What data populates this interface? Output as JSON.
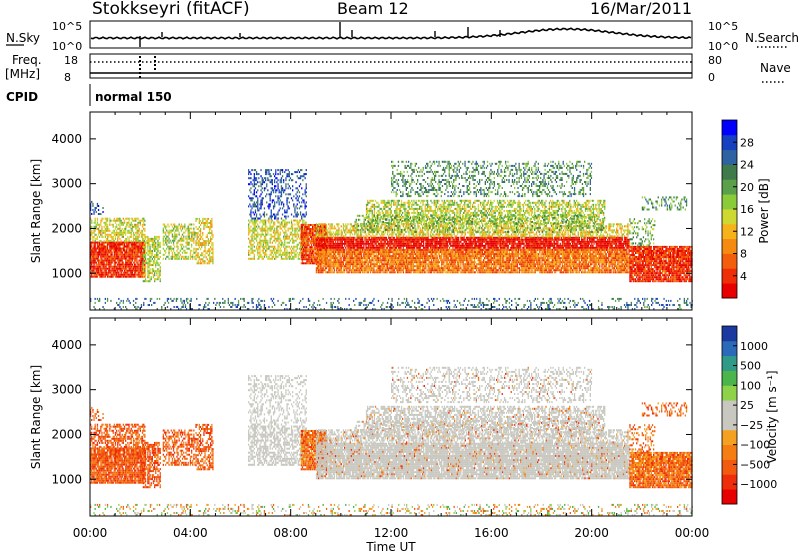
{
  "header": {
    "station": "Stokkseyri (fitACF)",
    "beam": "Beam 12",
    "date": "16/Mar/2011"
  },
  "noise_panel": {
    "left_label": "N.Sky",
    "left_ticks": [
      "10^5",
      "10^0"
    ],
    "right_ticks": [
      "10^5",
      "10^0"
    ],
    "right_label": "N.Search"
  },
  "freq_panel": {
    "left_label_1": "Freq.",
    "left_label_2": "[MHz]",
    "left_ticks": [
      "18",
      "8"
    ],
    "right_ticks": [
      "80",
      "0"
    ],
    "right_label": "Nave"
  },
  "cpid_panel": {
    "label": "CPID",
    "value": "normal 150"
  },
  "chart_data": [
    {
      "type": "heatmap",
      "name": "power",
      "xlabel": "",
      "ylabel": "Slant Range [km]",
      "xlim": [
        0,
        24
      ],
      "ylim": [
        180,
        4600
      ],
      "yticks": [
        "1000",
        "2000",
        "3000",
        "4000"
      ],
      "colorbar": {
        "label": "Power [dB]",
        "ticks": [
          "4",
          "8",
          "12",
          "16",
          "20",
          "24",
          "28"
        ],
        "colors": [
          "#0000ff",
          "#1540c0",
          "#2e62a0",
          "#3f7a4a",
          "#5aa04a",
          "#8acb3a",
          "#cfd830",
          "#f6b21a",
          "#f48a10",
          "#f25e0c",
          "#ef2e08",
          "#e80000"
        ]
      }
    },
    {
      "type": "heatmap",
      "name": "velocity",
      "xlabel": "Time UT",
      "ylabel": "Slant Range [km]",
      "xlim": [
        0,
        24
      ],
      "ylim": [
        180,
        4600
      ],
      "xticks": [
        "00:00",
        "04:00",
        "08:00",
        "12:00",
        "16:00",
        "20:00",
        "00:00"
      ],
      "yticks": [
        "1000",
        "2000",
        "3000",
        "4000"
      ],
      "colorbar": {
        "label": "Velocity [m s⁻¹]",
        "ticks": [
          "1000",
          "500",
          "100",
          "25",
          "−25",
          "−100",
          "−500",
          "−1000"
        ],
        "colors": [
          "#1a3aa0",
          "#2a6ab8",
          "#2f9a88",
          "#4bb44a",
          "#8ed24a",
          "#c8c8c0",
          "#c8c8c0",
          "#f4a020",
          "#f47e14",
          "#f25a10",
          "#ee2e0a",
          "#e60000"
        ]
      }
    }
  ]
}
